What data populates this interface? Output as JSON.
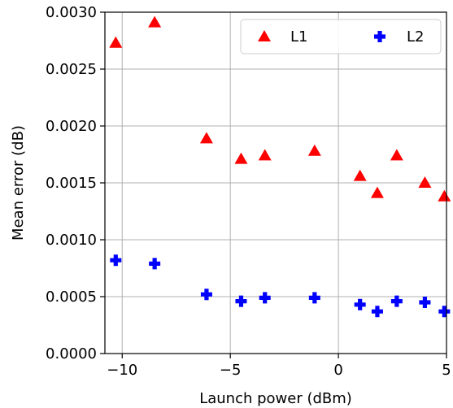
{
  "chart_data": {
    "type": "scatter",
    "title": "",
    "xlabel": "Launch power (dBm)",
    "ylabel": "Mean error (dB)",
    "xlim": [
      -10.8,
      5.0
    ],
    "ylim": [
      0,
      0.003
    ],
    "xticks": [
      -10,
      -5,
      0,
      5
    ],
    "xtick_labels": [
      "−10",
      "−5",
      "0",
      "5"
    ],
    "yticks": [
      0,
      0.0005,
      0.001,
      0.0015,
      0.002,
      0.0025,
      0.003
    ],
    "ytick_labels": [
      "0.0000",
      "0.0005",
      "0.0010",
      "0.0015",
      "0.0020",
      "0.0025",
      "0.0030"
    ],
    "grid": true,
    "legend_position": "top-right",
    "series": [
      {
        "name": "L1",
        "marker": "triangle",
        "color": "#ff0000",
        "x": [
          -10.3,
          -8.5,
          -6.1,
          -4.5,
          -3.4,
          -1.1,
          1.0,
          1.8,
          2.7,
          4.0,
          4.9
        ],
        "y": [
          0.00273,
          0.00291,
          0.00189,
          0.00171,
          0.00174,
          0.00178,
          0.00156,
          0.00141,
          0.00174,
          0.0015,
          0.00138
        ]
      },
      {
        "name": "L2",
        "marker": "plus",
        "color": "#0000ff",
        "x": [
          -10.3,
          -8.5,
          -6.1,
          -4.5,
          -3.4,
          -1.1,
          1.0,
          1.8,
          2.7,
          4.0,
          4.9
        ],
        "y": [
          0.00082,
          0.00079,
          0.00052,
          0.00046,
          0.00049,
          0.00049,
          0.00043,
          0.00037,
          0.00046,
          0.00045,
          0.00037
        ]
      }
    ]
  }
}
